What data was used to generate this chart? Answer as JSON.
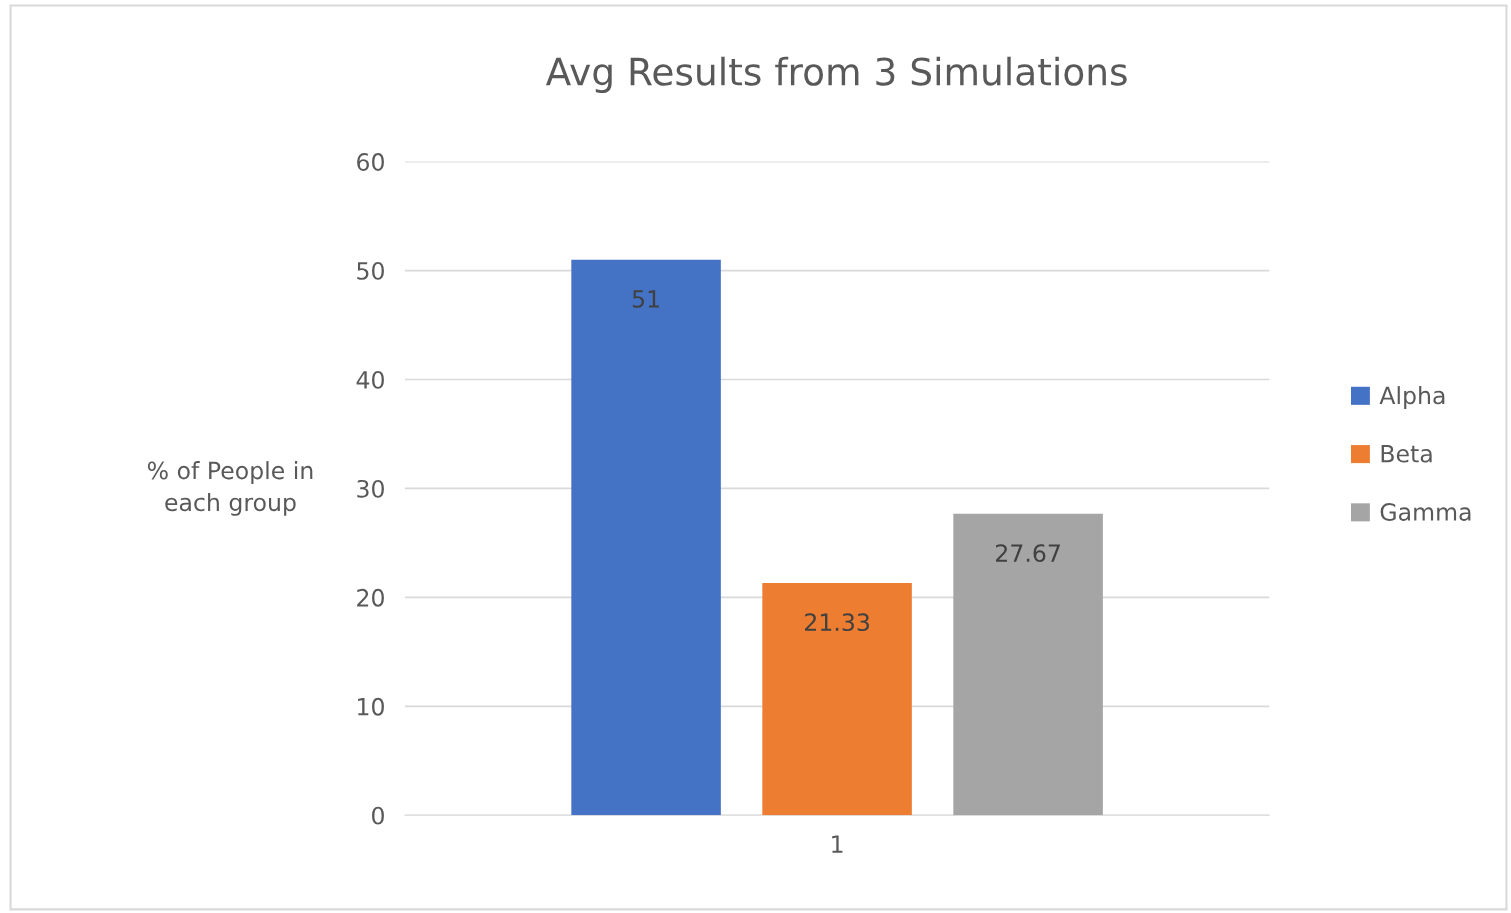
{
  "chart_data": {
    "type": "bar",
    "title": "Avg Results from 3 Simulations",
    "ylabel": "% of People in\neach group",
    "categories": [
      "1"
    ],
    "series": [
      {
        "name": "Alpha",
        "color": "#4472c4",
        "values": [
          51
        ]
      },
      {
        "name": "Beta",
        "color": "#ed7d31",
        "values": [
          21.33
        ]
      },
      {
        "name": "Gamma",
        "color": "#a5a5a5",
        "values": [
          27.67
        ]
      }
    ],
    "ylim": [
      0,
      60
    ],
    "yticks": [
      0,
      10,
      20,
      30,
      40,
      50,
      60
    ],
    "grid": "y",
    "legend": "right",
    "data_labels": true
  }
}
